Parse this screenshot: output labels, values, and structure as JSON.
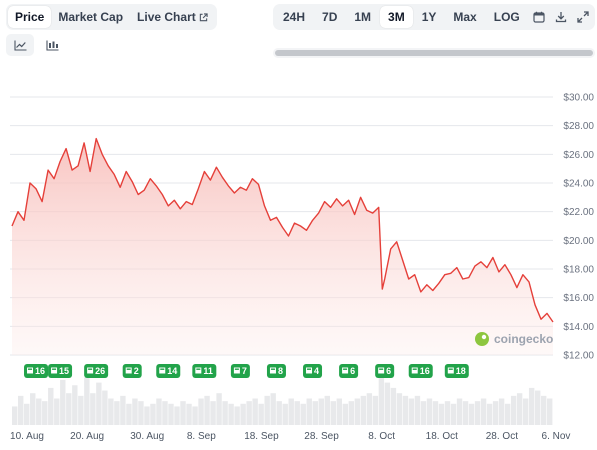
{
  "toolbar": {
    "tabs": [
      {
        "label": "Price",
        "active": true
      },
      {
        "label": "Market Cap",
        "active": false
      },
      {
        "label": "Live Chart",
        "active": false
      }
    ],
    "ranges": [
      {
        "label": "24H",
        "active": false
      },
      {
        "label": "7D",
        "active": false
      },
      {
        "label": "1M",
        "active": false
      },
      {
        "label": "3M",
        "active": true
      },
      {
        "label": "1Y",
        "active": false
      },
      {
        "label": "Max",
        "active": false
      },
      {
        "label": "LOG",
        "active": false
      }
    ],
    "icons": [
      "calendar-icon",
      "download-icon",
      "expand-icon"
    ],
    "chart_types": [
      {
        "icon": "line-chart-icon",
        "active": true
      },
      {
        "icon": "candlestick-chart-icon",
        "active": false
      }
    ]
  },
  "colors": {
    "line": "#e5403a",
    "area_top": "#f9c9c6",
    "event_badge": "#22a34a",
    "grid": "#e5e7eb",
    "volume": "#e8e9eb",
    "accent_watermark": "#8dc63f"
  },
  "watermark": "coingecko",
  "chart_data": {
    "type": "area",
    "title": "",
    "xlabel": "",
    "ylabel": "",
    "y_ticks": [
      "$12.00",
      "$14.00",
      "$16.00",
      "$18.00",
      "$20.00",
      "$22.00",
      "$24.00",
      "$26.00",
      "$28.00",
      "$30.00"
    ],
    "ylim": [
      12,
      30
    ],
    "x_ticks": [
      "10. Aug",
      "20. Aug",
      "30. Aug",
      "8. Sep",
      "18. Sep",
      "28. Sep",
      "8. Oct",
      "18. Oct",
      "28. Oct",
      "6. Nov"
    ],
    "x_tick_days": [
      0,
      10,
      20,
      29,
      39,
      49,
      59,
      69,
      79,
      88
    ],
    "xlim_days": [
      0,
      90
    ],
    "series": [
      {
        "points": [
          [
            0,
            21.0
          ],
          [
            1,
            22.0
          ],
          [
            2,
            21.4
          ],
          [
            3,
            24.0
          ],
          [
            4,
            23.6
          ],
          [
            5,
            22.7
          ],
          [
            6,
            24.9
          ],
          [
            7,
            24.3
          ],
          [
            8,
            25.5
          ],
          [
            9,
            26.4
          ],
          [
            10,
            24.9
          ],
          [
            11,
            25.2
          ],
          [
            12,
            26.8
          ],
          [
            13,
            24.8
          ],
          [
            14,
            27.1
          ],
          [
            15,
            26.0
          ],
          [
            16,
            25.2
          ],
          [
            17,
            24.6
          ],
          [
            18,
            23.7
          ],
          [
            19,
            24.8
          ],
          [
            20,
            24.1
          ],
          [
            21,
            23.2
          ],
          [
            22,
            23.5
          ],
          [
            23,
            24.3
          ],
          [
            24,
            23.8
          ],
          [
            25,
            23.2
          ],
          [
            26,
            22.4
          ],
          [
            27,
            22.8
          ],
          [
            28,
            22.2
          ],
          [
            29,
            22.7
          ],
          [
            30,
            22.5
          ],
          [
            31,
            23.6
          ],
          [
            32,
            24.8
          ],
          [
            33,
            24.2
          ],
          [
            34,
            25.1
          ],
          [
            35,
            24.4
          ],
          [
            36,
            23.8
          ],
          [
            37,
            23.3
          ],
          [
            38,
            23.7
          ],
          [
            39,
            23.5
          ],
          [
            40,
            24.3
          ],
          [
            41,
            23.9
          ],
          [
            42,
            22.4
          ],
          [
            43,
            21.4
          ],
          [
            44,
            21.6
          ],
          [
            45,
            20.9
          ],
          [
            46,
            20.3
          ],
          [
            47,
            21.2
          ],
          [
            48,
            21.0
          ],
          [
            49,
            20.7
          ],
          [
            50,
            21.4
          ],
          [
            51,
            21.9
          ],
          [
            52,
            22.7
          ],
          [
            53,
            22.3
          ],
          [
            54,
            22.9
          ],
          [
            55,
            22.4
          ],
          [
            56,
            22.8
          ],
          [
            57,
            21.8
          ],
          [
            58,
            23.0
          ],
          [
            59,
            22.1
          ],
          [
            60,
            21.9
          ],
          [
            61,
            22.3
          ],
          [
            61.6,
            16.6
          ],
          [
            62,
            17.3
          ],
          [
            63,
            19.4
          ],
          [
            64,
            19.9
          ],
          [
            65,
            18.6
          ],
          [
            66,
            17.3
          ],
          [
            67,
            17.6
          ],
          [
            68,
            16.4
          ],
          [
            69,
            16.9
          ],
          [
            70,
            16.5
          ],
          [
            71,
            17.0
          ],
          [
            72,
            17.6
          ],
          [
            73,
            17.7
          ],
          [
            74,
            18.1
          ],
          [
            75,
            17.3
          ],
          [
            76,
            17.4
          ],
          [
            77,
            18.2
          ],
          [
            78,
            18.5
          ],
          [
            79,
            18.1
          ],
          [
            80,
            18.8
          ],
          [
            81,
            17.8
          ],
          [
            82,
            18.3
          ],
          [
            83,
            17.6
          ],
          [
            84,
            16.7
          ],
          [
            85,
            17.6
          ],
          [
            86,
            17.1
          ],
          [
            87,
            15.5
          ],
          [
            88,
            14.5
          ],
          [
            89,
            14.9
          ],
          [
            90,
            14.3
          ]
        ]
      }
    ],
    "events": [
      {
        "day": 1.5,
        "label": "16"
      },
      {
        "day": 5.5,
        "label": "15"
      },
      {
        "day": 11.5,
        "label": "26"
      },
      {
        "day": 17.5,
        "label": "2"
      },
      {
        "day": 23.5,
        "label": "14"
      },
      {
        "day": 29.5,
        "label": "11"
      },
      {
        "day": 35.5,
        "label": "7"
      },
      {
        "day": 41.5,
        "label": "8"
      },
      {
        "day": 47.5,
        "label": "4"
      },
      {
        "day": 53.5,
        "label": "6"
      },
      {
        "day": 59.5,
        "label": "6"
      },
      {
        "day": 65.5,
        "label": "16"
      },
      {
        "day": 71.5,
        "label": "18"
      }
    ],
    "volume": [
      0.35,
      0.55,
      0.4,
      0.6,
      0.5,
      0.45,
      0.7,
      0.5,
      0.85,
      0.6,
      0.75,
      0.55,
      0.9,
      0.6,
      0.8,
      0.65,
      0.5,
      0.45,
      0.55,
      0.4,
      0.5,
      0.45,
      0.35,
      0.4,
      0.5,
      0.45,
      0.4,
      0.35,
      0.45,
      0.4,
      0.35,
      0.5,
      0.55,
      0.45,
      0.6,
      0.45,
      0.4,
      0.35,
      0.4,
      0.45,
      0.5,
      0.4,
      0.55,
      0.6,
      0.45,
      0.4,
      0.5,
      0.45,
      0.4,
      0.5,
      0.45,
      0.5,
      0.55,
      0.45,
      0.5,
      0.4,
      0.45,
      0.5,
      0.55,
      0.6,
      0.55,
      0.95,
      0.8,
      0.7,
      0.6,
      0.55,
      0.5,
      0.55,
      0.45,
      0.5,
      0.45,
      0.4,
      0.45,
      0.4,
      0.5,
      0.45,
      0.4,
      0.45,
      0.5,
      0.4,
      0.45,
      0.5,
      0.4,
      0.55,
      0.6,
      0.5,
      0.7,
      0.65,
      0.55,
      0.5
    ]
  }
}
